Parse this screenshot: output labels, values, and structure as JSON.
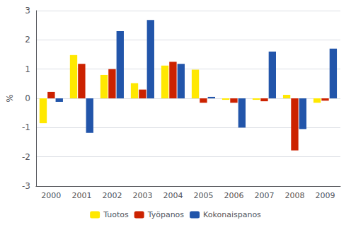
{
  "chart_data": {
    "type": "bar",
    "categories": [
      "2000",
      "2001",
      "2002",
      "2003",
      "2004",
      "2005",
      "2006",
      "2007",
      "2008",
      "2009"
    ],
    "series": [
      {
        "name": "Tuotos",
        "color": "#FFE800",
        "values": [
          -0.85,
          1.48,
          0.8,
          0.52,
          1.12,
          0.98,
          -0.05,
          -0.05,
          0.12,
          -0.15
        ]
      },
      {
        "name": "Työpanos",
        "color": "#CC2200",
        "values": [
          0.22,
          1.18,
          1.0,
          0.3,
          1.25,
          -0.15,
          -0.15,
          -0.1,
          -1.78,
          -0.08
        ]
      },
      {
        "name": "Kokonaispanos",
        "color": "#2255AA",
        "values": [
          -0.12,
          -1.18,
          2.3,
          2.68,
          1.18,
          0.05,
          -1.0,
          1.6,
          -1.05,
          1.7
        ]
      }
    ],
    "ylabel": "%",
    "ylim": [
      -3,
      3
    ],
    "yticks": [
      -3,
      -2,
      -1,
      0,
      1,
      2,
      3
    ],
    "grid": true,
    "legend": "bottom"
  }
}
